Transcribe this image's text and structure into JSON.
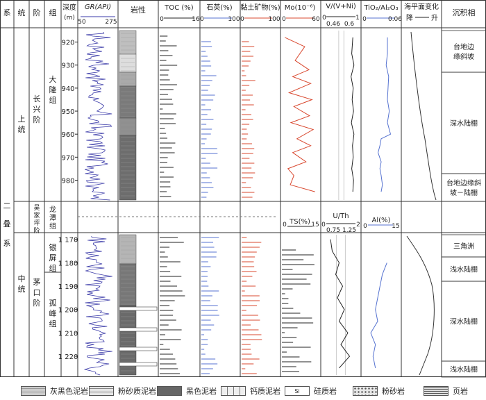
{
  "header": {
    "system": "系",
    "series": "统",
    "stage": "阶",
    "group": "组",
    "depth": "深度",
    "depth_unit": "(m)",
    "gr": "GR(API)",
    "gr_min": "50",
    "gr_max": "275",
    "lith": "岩性",
    "toc": "TOC (%)",
    "toc_min": "0",
    "toc_max": "16",
    "quartz": "石英(%)",
    "quartz_min": "0",
    "quartz_max": "100",
    "clay": "黏土矿物(%)",
    "clay_min": "0",
    "clay_max": "100",
    "mo": "Mo(10⁻⁶)",
    "mo_min": "0",
    "mo_max": "60",
    "vvni": "V/(V+Ni)",
    "vvni_min": "0",
    "vvni_max": "1",
    "vvni_sub1": "0.46",
    "vvni_sub2": "0.6",
    "ti": "TiO₂/Al₂O₃",
    "ti_min": "0",
    "ti_max": "0.06",
    "sea": "海平面变化",
    "sea_fall": "降",
    "sea_rise": "升",
    "facies": "沉积相"
  },
  "mid_header": {
    "ts": "TS(%)",
    "ts_min": "0",
    "ts_max": "15",
    "uth": "U/Th",
    "uth_min": "0",
    "uth_max": "2",
    "uth_sub1": "0.75",
    "uth_sub2": "1.25",
    "al": "Al(%)",
    "al_min": "0",
    "al_max": "15"
  },
  "strat": {
    "system": "二叠系",
    "upper_series": "上统",
    "upper_stage": "长兴阶",
    "upper_group": "大隆组",
    "wujiaping": "吴家坪阶",
    "longtan": "龙潭组",
    "middle_series": "中统",
    "middle_stage": "茅口阶",
    "yinping": "银屏组",
    "gufeng": "孤峰组"
  },
  "depth_ticks_upper": [
    "920",
    "930",
    "940",
    "950",
    "960",
    "970",
    "980"
  ],
  "depth_ticks_lower": [
    "1 170",
    "1 180",
    "1 190",
    "1 200",
    "1 210",
    "1 220"
  ],
  "facies": [
    "台地边缘斜坡",
    "深水陆棚",
    "台地边缘斜坡－陆棚",
    "三角洲",
    "浅水陆棚",
    "深水陆棚",
    "浅水陆棚"
  ],
  "legend": [
    "灰黑色泥岩",
    "粉砂质泥岩",
    "黑色泥岩",
    "钙质泥岩",
    "硅质岩",
    "粉砂岩",
    "页岩"
  ],
  "colors": {
    "gr": "#3a3aa8",
    "quartz": "#5572d0",
    "clay": "#d9482f",
    "mo": "#d9482f",
    "ti": "#5572d0",
    "black": "#222"
  },
  "chart_data": {
    "type": "line",
    "intervals": [
      {
        "name": "upper",
        "depth_range": [
          915,
          988
        ]
      },
      {
        "name": "lower",
        "depth_range": [
          1168,
          1228
        ]
      }
    ],
    "mo_upper": {
      "depth": [
        918,
        922,
        928,
        932,
        935,
        938,
        942,
        945,
        948,
        952,
        955,
        958,
        962,
        965,
        968,
        972,
        975,
        978,
        982,
        985
      ],
      "value": [
        5,
        38,
        22,
        45,
        18,
        48,
        12,
        50,
        20,
        46,
        15,
        52,
        25,
        48,
        18,
        40,
        10,
        20,
        14,
        55
      ]
    },
    "vvni_upper": {
      "depth": [
        918,
        925,
        930,
        935,
        940,
        945,
        950,
        955,
        960,
        965,
        970,
        975,
        980,
        985
      ],
      "value": [
        0.85,
        0.82,
        0.88,
        0.8,
        0.86,
        0.83,
        0.87,
        0.81,
        0.88,
        0.84,
        0.86,
        0.82,
        0.87,
        0.85
      ]
    },
    "ti_upper": {
      "depth": [
        918,
        925,
        930,
        935,
        940,
        945,
        950,
        955,
        960,
        962,
        965,
        968,
        972,
        975,
        978,
        982,
        985
      ],
      "value": [
        0.04,
        0.04,
        0.038,
        0.042,
        0.041,
        0.04,
        0.043,
        0.04,
        0.045,
        0.03,
        0.028,
        0.025,
        0.03,
        0.028,
        0.03,
        0.032,
        0.03
      ]
    },
    "uth_lower": {
      "depth": [
        1170,
        1175,
        1180,
        1185,
        1190,
        1195,
        1200,
        1205,
        1210,
        1215,
        1220,
        1225
      ],
      "value": [
        0.4,
        0.5,
        0.9,
        0.7,
        1.1,
        0.8,
        1.2,
        0.9,
        1.4,
        1.0,
        1.5,
        0.9
      ]
    },
    "al_lower": {
      "depth": [
        1180,
        1185,
        1190,
        1195,
        1200,
        1205,
        1210,
        1215,
        1220,
        1225
      ],
      "value": [
        10,
        8,
        7,
        6,
        5,
        6,
        3,
        5,
        4,
        5
      ]
    }
  }
}
